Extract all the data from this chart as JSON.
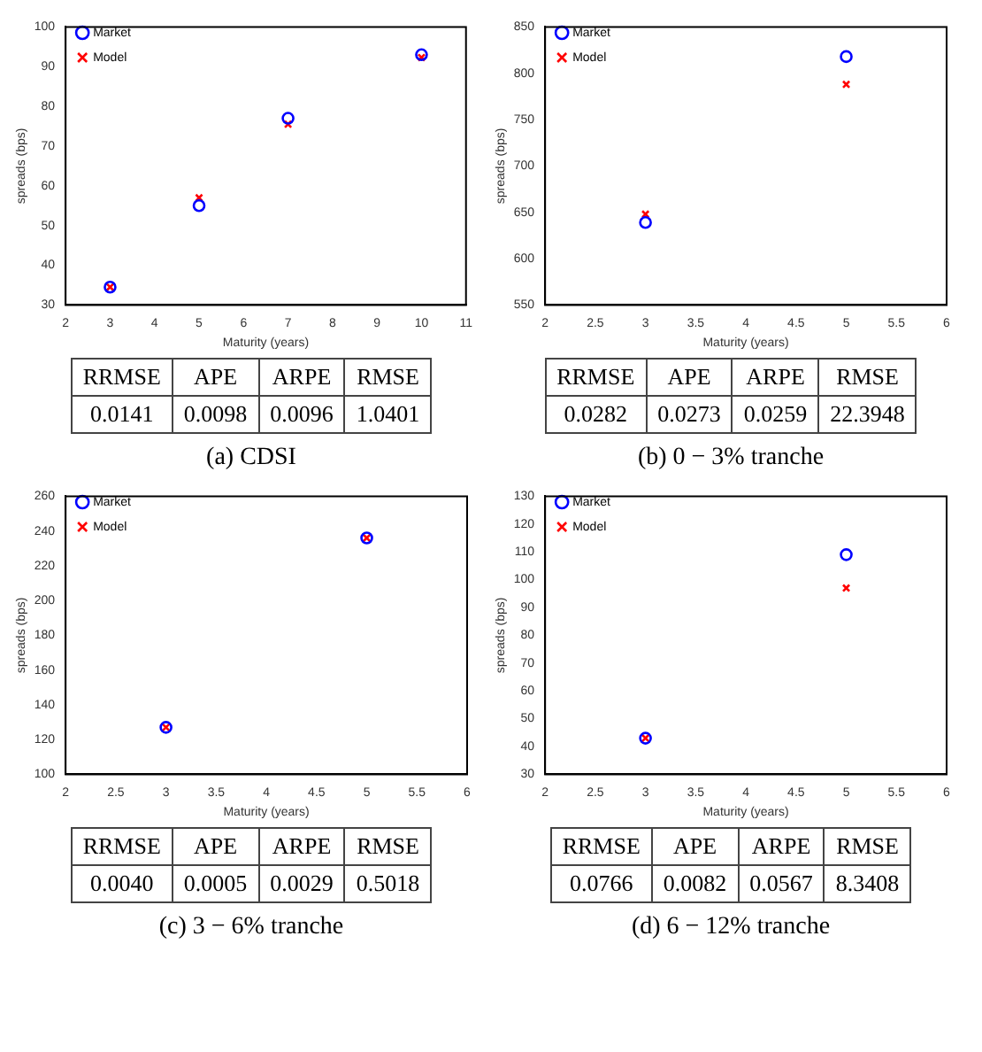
{
  "chart_data": [
    {
      "type": "scatter",
      "title": "(a) CDSI",
      "xlabel": "Maturity (years)",
      "ylabel": "spreads (bps)",
      "xlim": [
        2,
        11
      ],
      "xticks": [
        2,
        3,
        4,
        5,
        6,
        7,
        8,
        9,
        10,
        11
      ],
      "ylim": [
        30,
        100
      ],
      "yticks": [
        30,
        40,
        50,
        60,
        70,
        80,
        90,
        100
      ],
      "grid": false,
      "legend": "top left",
      "series": [
        {
          "name": "Market",
          "color": "#0000ff",
          "marker": "circle",
          "x": [
            3,
            5,
            7,
            10
          ],
          "values": [
            34.5,
            55,
            77,
            93
          ]
        },
        {
          "name": "Model",
          "color": "#ff0000",
          "marker": "cross",
          "x": [
            3,
            5,
            7,
            10
          ],
          "values": [
            34.5,
            57,
            75.5,
            92.3
          ]
        }
      ],
      "annotations": [
        "RRMSE",
        "APE",
        "ARPE",
        "RMSE",
        "0.0141",
        "0.0098",
        "0.0096",
        "1.0401"
      ]
    },
    {
      "type": "scatter",
      "title": "(b) 0 − 3% tranche",
      "xlabel": "Maturity (years)",
      "ylabel": "spreads (bps)",
      "xlim": [
        2,
        6
      ],
      "xticks": [
        2,
        2.5,
        3,
        3.5,
        4,
        4.5,
        5,
        5.5,
        6
      ],
      "ylim": [
        550,
        850
      ],
      "yticks": [
        550,
        600,
        650,
        700,
        750,
        800,
        850
      ],
      "grid": false,
      "legend": "top left",
      "series": [
        {
          "name": "Market",
          "color": "#0000ff",
          "marker": "circle",
          "x": [
            3,
            5
          ],
          "values": [
            639,
            818
          ]
        },
        {
          "name": "Model",
          "color": "#ff0000",
          "marker": "cross",
          "x": [
            3,
            5
          ],
          "values": [
            648,
            788
          ]
        }
      ],
      "annotations": [
        "RRMSE",
        "APE",
        "ARPE",
        "RMSE",
        "0.0282",
        "0.0273",
        "0.0259",
        "22.3948"
      ]
    },
    {
      "type": "scatter",
      "title": "(c) 3 − 6% tranche",
      "xlabel": "Maturity (years)",
      "ylabel": "spreads (bps)",
      "xlim": [
        2,
        6
      ],
      "xticks": [
        2,
        2.5,
        3,
        3.5,
        4,
        4.5,
        5,
        5.5,
        6
      ],
      "ylim": [
        100,
        260
      ],
      "yticks": [
        100,
        120,
        140,
        160,
        180,
        200,
        220,
        240,
        260
      ],
      "grid": false,
      "legend": "top left",
      "series": [
        {
          "name": "Market",
          "color": "#0000ff",
          "marker": "circle",
          "x": [
            3,
            5
          ],
          "values": [
            127,
            236
          ]
        },
        {
          "name": "Model",
          "color": "#ff0000",
          "marker": "cross",
          "x": [
            3,
            5
          ],
          "values": [
            127,
            236
          ]
        }
      ],
      "annotations": [
        "RRMSE",
        "APE",
        "ARPE",
        "RMSE",
        "0.0040",
        "0.0005",
        "0.0029",
        "0.5018"
      ]
    },
    {
      "type": "scatter",
      "title": "(d) 6 − 12% tranche",
      "xlabel": "Maturity (years)",
      "ylabel": "spreads (bps)",
      "xlim": [
        2,
        6
      ],
      "xticks": [
        2,
        2.5,
        3,
        3.5,
        4,
        4.5,
        5,
        5.5,
        6
      ],
      "ylim": [
        30,
        130
      ],
      "yticks": [
        30,
        40,
        50,
        60,
        70,
        80,
        90,
        100,
        110,
        120,
        130
      ],
      "grid": false,
      "legend": "top left",
      "series": [
        {
          "name": "Market",
          "color": "#0000ff",
          "marker": "circle",
          "x": [
            3,
            5
          ],
          "values": [
            43,
            109
          ]
        },
        {
          "name": "Model",
          "color": "#ff0000",
          "marker": "cross",
          "x": [
            3,
            5
          ],
          "values": [
            43,
            97
          ]
        }
      ],
      "annotations": [
        "RRMSE",
        "APE",
        "ARPE",
        "RMSE",
        "0.0766",
        "0.0082",
        "0.0567",
        "8.3408"
      ]
    }
  ]
}
